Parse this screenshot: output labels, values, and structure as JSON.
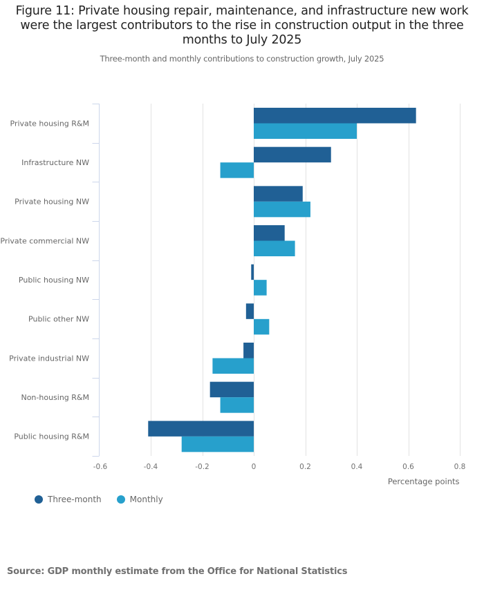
{
  "header": {
    "title": "Figure 11: Private housing repair, maintenance, and infrastructure new work were the largest contributors to the rise in construction output in the three months to July 2025",
    "subtitle": "Three-month and monthly contributions to construction growth, July 2025"
  },
  "colors": {
    "three_month": "#206095",
    "monthly": "#27a0cc",
    "gridline": "#e2e2e2",
    "axis": "#ccd6eb"
  },
  "chart_data": {
    "type": "bar",
    "orientation": "horizontal",
    "title": "Figure 11: Private housing repair, maintenance, and infrastructure new work were the largest contributors to the rise in construction output in the three months to July 2025",
    "subtitle": "Three-month and monthly contributions to construction growth, July 2025",
    "categories": [
      "Private housing R&M",
      "Infrastructure NW",
      "Private housing NW",
      "Private commercial NW",
      "Public housing NW",
      "Public other NW",
      "Private industrial NW",
      "Non-housing R&M",
      "Public housing R&M"
    ],
    "series": [
      {
        "name": "Three-month",
        "color": "#206095",
        "values": [
          0.63,
          0.3,
          0.19,
          0.12,
          -0.01,
          -0.03,
          -0.04,
          -0.17,
          -0.41
        ]
      },
      {
        "name": "Monthly",
        "color": "#27a0cc",
        "values": [
          0.4,
          -0.13,
          0.22,
          0.16,
          0.05,
          0.06,
          -0.16,
          -0.13,
          -0.28
        ]
      }
    ],
    "xlabel": "Percentage points",
    "ylabel": "",
    "xlim": [
      -0.6,
      0.8
    ],
    "xticks": [
      -0.6,
      -0.4,
      -0.2,
      0,
      0.2,
      0.4,
      0.6,
      0.8
    ],
    "xtick_labels": [
      "-0.6",
      "-0.4",
      "-0.2",
      "0",
      "0.2",
      "0.4",
      "0.6",
      "0.8"
    ],
    "grid": "vertical",
    "legend": {
      "position": "bottom-left",
      "entries": [
        "Three-month",
        "Monthly"
      ]
    }
  },
  "legend": {
    "items": [
      {
        "label": "Three-month",
        "color": "#206095"
      },
      {
        "label": "Monthly",
        "color": "#27a0cc"
      }
    ]
  },
  "footer": {
    "source": "Source: GDP monthly estimate from the Office for National Statistics"
  }
}
